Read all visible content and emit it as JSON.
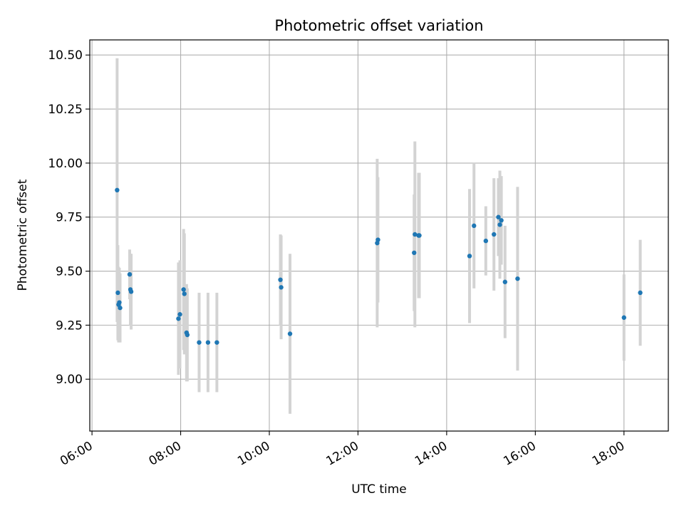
{
  "chart_data": {
    "type": "scatter",
    "title": "Photometric offset variation",
    "xlabel": "UTC time",
    "ylabel": "Photometric offset",
    "xlim": [
      "05:57",
      "19:00"
    ],
    "ylim": [
      8.76,
      10.57
    ],
    "grid": true,
    "x_ticks": [
      "06:00",
      "08:00",
      "10:00",
      "12:00",
      "14:00",
      "16:00",
      "18:00"
    ],
    "y_ticks": [
      "9.00",
      "9.25",
      "9.50",
      "9.75",
      "10.00",
      "10.25",
      "10.50"
    ],
    "colors": {
      "point": "#1f77b4",
      "errorbar": "#d3d3d3",
      "grid": "#b0b0b0"
    },
    "series": [
      {
        "points": [
          {
            "x": "06:34",
            "y": 9.875,
            "err": 0.61
          },
          {
            "x": "06:35",
            "y": 9.4,
            "err": 0.22
          },
          {
            "x": "06:36",
            "y": 9.345,
            "err": 0.175
          },
          {
            "x": "06:37",
            "y": 9.355,
            "err": 0.16
          },
          {
            "x": "06:38",
            "y": 9.33,
            "err": 0.16
          },
          {
            "x": "06:51",
            "y": 9.485,
            "err": 0.115
          },
          {
            "x": "06:52",
            "y": 9.415,
            "err": 0.165
          },
          {
            "x": "06:53",
            "y": 9.405,
            "err": 0.175
          },
          {
            "x": "07:57",
            "y": 9.28,
            "err": 0.26
          },
          {
            "x": "07:59",
            "y": 9.3,
            "err": 0.25
          },
          {
            "x": "08:04",
            "y": 9.415,
            "err": 0.28
          },
          {
            "x": "08:05",
            "y": 9.395,
            "err": 0.28
          },
          {
            "x": "08:08",
            "y": 9.215,
            "err": 0.225
          },
          {
            "x": "08:09",
            "y": 9.205,
            "err": 0.215
          },
          {
            "x": "08:25",
            "y": 9.17,
            "err": 0.23
          },
          {
            "x": "08:37",
            "y": 9.17,
            "err": 0.23
          },
          {
            "x": "08:49",
            "y": 9.17,
            "err": 0.23
          },
          {
            "x": "10:15",
            "y": 9.46,
            "err": 0.21
          },
          {
            "x": "10:16",
            "y": 9.425,
            "err": 0.24
          },
          {
            "x": "10:28",
            "y": 9.21,
            "err": 0.37
          },
          {
            "x": "12:26",
            "y": 9.63,
            "err": 0.39
          },
          {
            "x": "12:27",
            "y": 9.645,
            "err": 0.29
          },
          {
            "x": "13:16",
            "y": 9.585,
            "err": 0.27
          },
          {
            "x": "13:17",
            "y": 9.67,
            "err": 0.43
          },
          {
            "x": "13:22",
            "y": 9.665,
            "err": 0.29
          },
          {
            "x": "13:23",
            "y": 9.665,
            "err": 0.29
          },
          {
            "x": "14:31",
            "y": 9.57,
            "err": 0.31
          },
          {
            "x": "14:37",
            "y": 9.71,
            "err": 0.29
          },
          {
            "x": "14:53",
            "y": 9.64,
            "err": 0.16
          },
          {
            "x": "15:04",
            "y": 9.67,
            "err": 0.26
          },
          {
            "x": "15:10",
            "y": 9.75,
            "err": 0.18
          },
          {
            "x": "15:12",
            "y": 9.715,
            "err": 0.25
          },
          {
            "x": "15:14",
            "y": 9.735,
            "err": 0.205
          },
          {
            "x": "15:19",
            "y": 9.45,
            "err": 0.26
          },
          {
            "x": "15:36",
            "y": 9.465,
            "err": 0.425
          },
          {
            "x": "18:00",
            "y": 9.285,
            "err": 0.2
          },
          {
            "x": "18:22",
            "y": 9.4,
            "err": 0.245
          }
        ]
      }
    ]
  }
}
